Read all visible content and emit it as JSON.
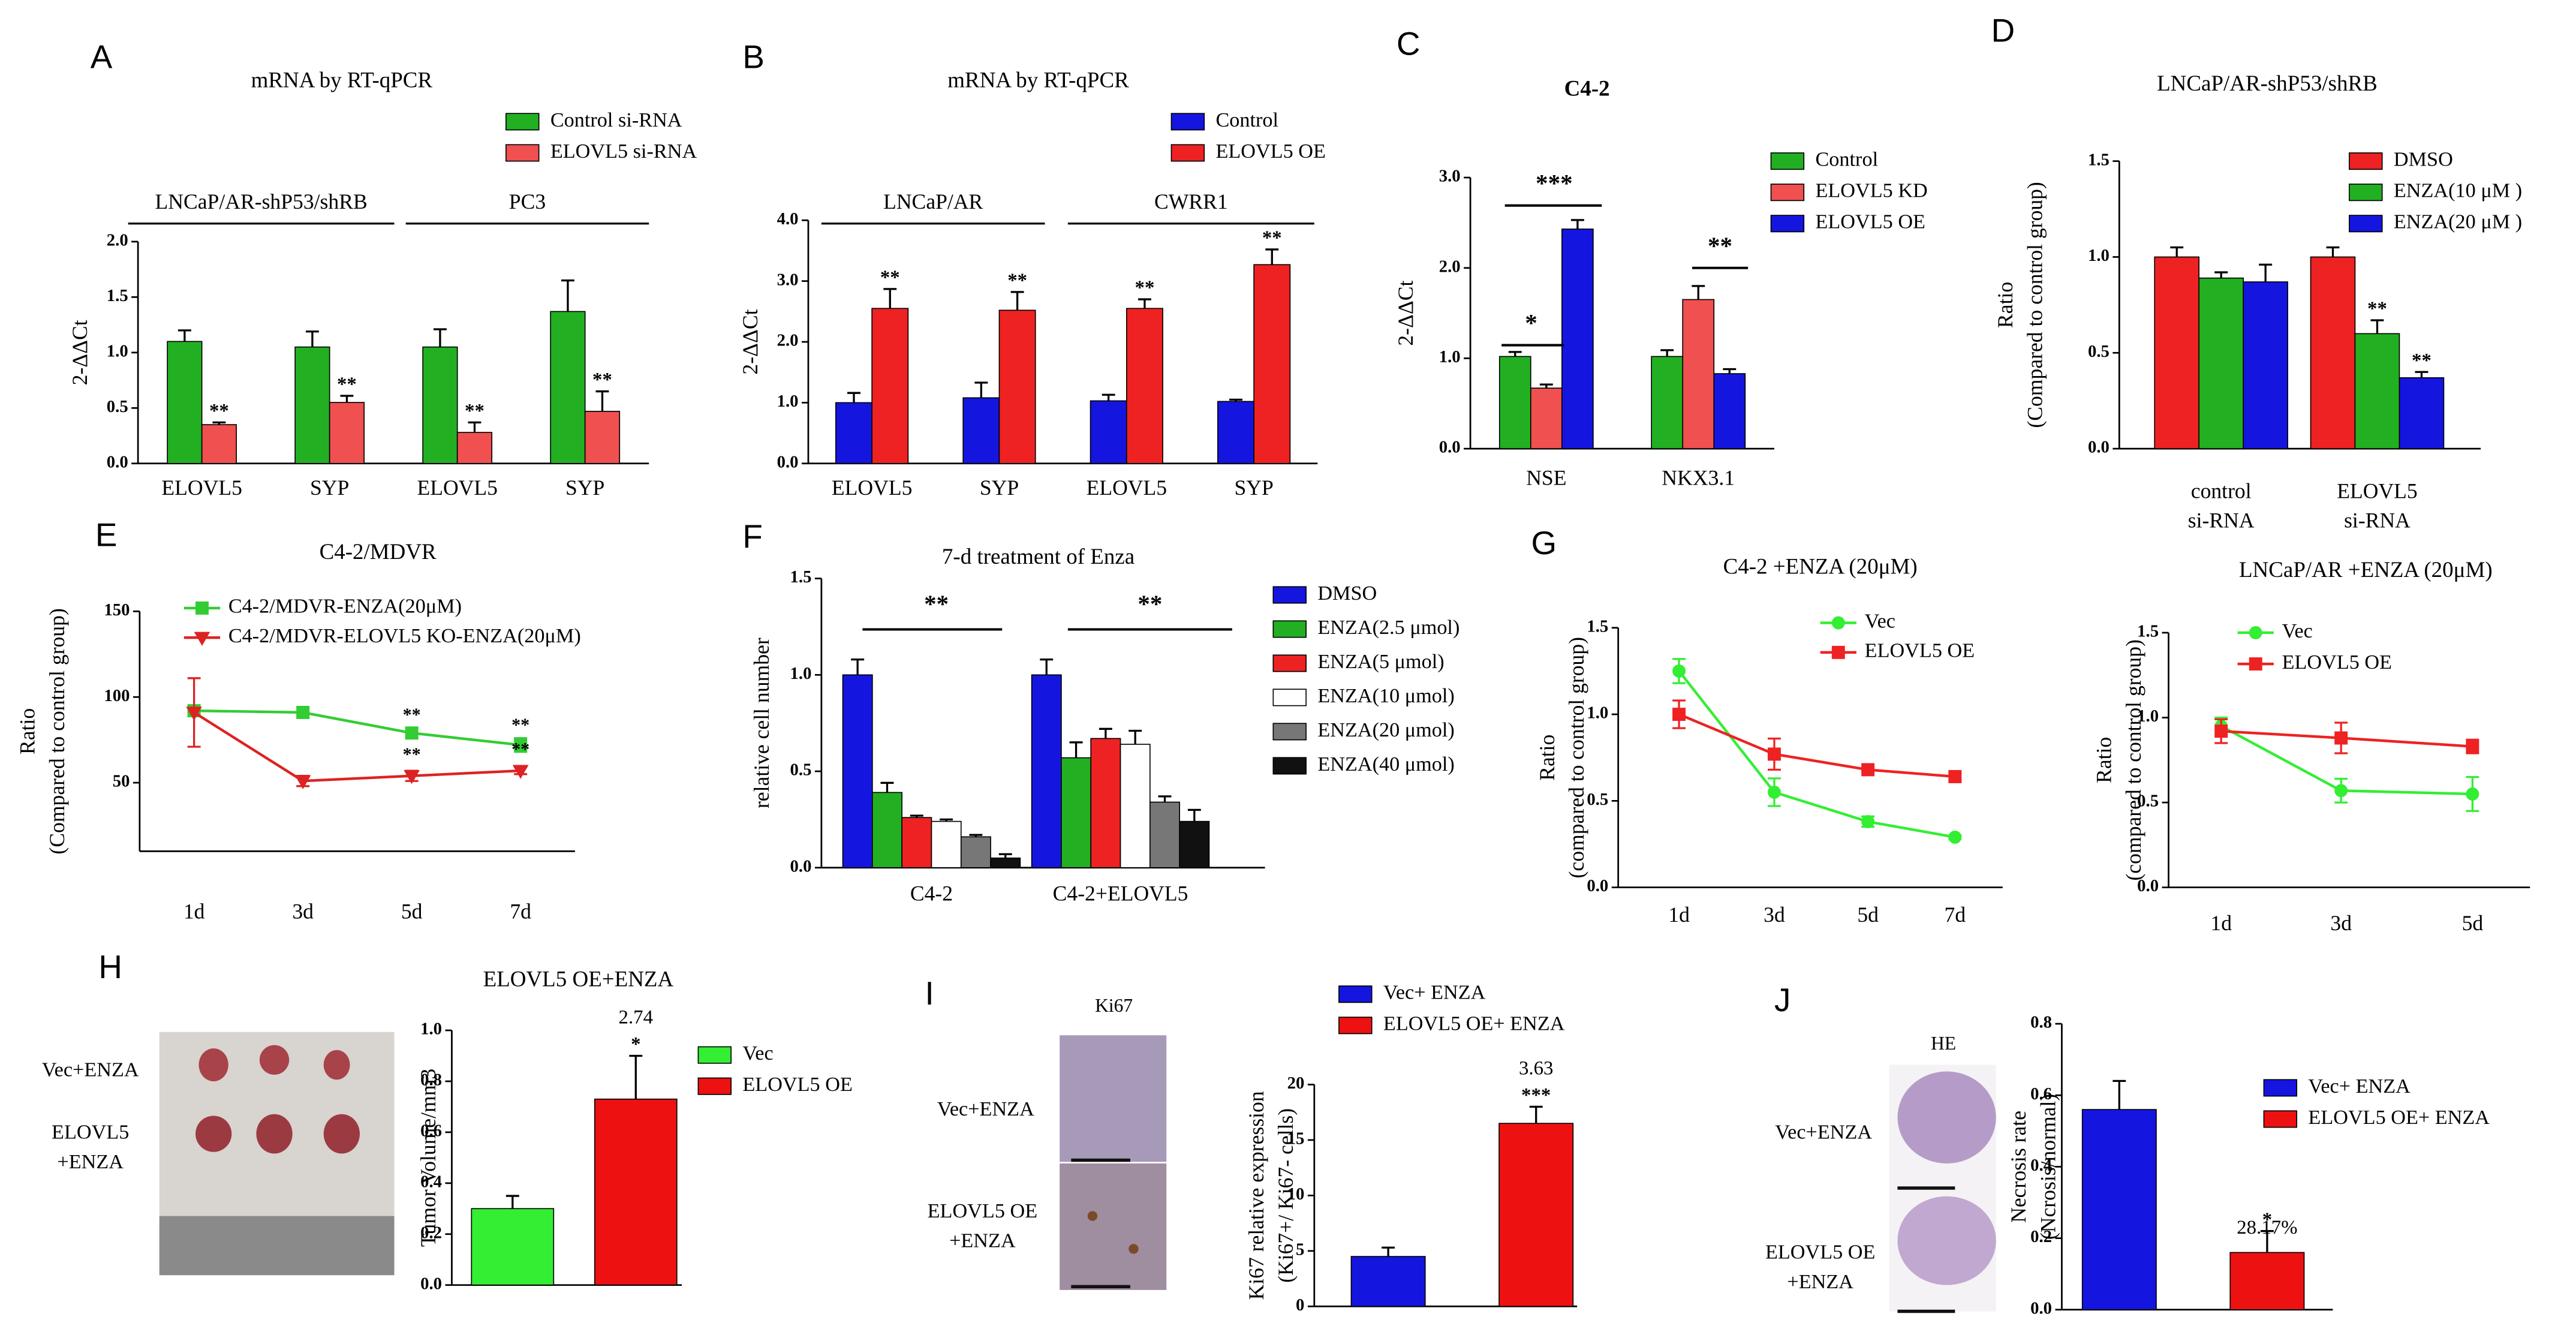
{
  "chart_data": [
    {
      "panel": "A",
      "type": "bar",
      "title": "mRNA by RT-qPCR",
      "ylabel": [
        "2-ΔΔCt"
      ],
      "groups": [
        "LNCaP/AR-shP53/shRB",
        "PC3"
      ],
      "categories": [
        [
          "ELOVL5"
        ],
        [
          "SYP"
        ],
        [
          "ELOVL5"
        ],
        [
          "SYP"
        ]
      ],
      "series": [
        {
          "name": "Control si-RNA",
          "color": "#22b022",
          "values": [
            1.1,
            1.05,
            1.05,
            1.37
          ],
          "errors": [
            0.1,
            0.14,
            0.16,
            0.28
          ]
        },
        {
          "name": "ELOVL5  si-RNA",
          "color": "#f05050",
          "values": [
            0.35,
            0.55,
            0.28,
            0.47
          ],
          "errors": [
            0.02,
            0.06,
            0.09,
            0.18
          ],
          "significance": [
            "**",
            "**",
            "**",
            "**"
          ]
        }
      ],
      "ylim": [
        0,
        2
      ],
      "yticks": [
        {
          "value": 0,
          "label": "0.0"
        },
        0.5,
        {
          "value": 1,
          "label": "1.0"
        },
        1.5,
        {
          "value": 2,
          "label": "2.0"
        }
      ]
    },
    {
      "panel": "B",
      "type": "bar",
      "title": "mRNA by RT-qPCR",
      "ylabel": [
        "2-ΔΔCt"
      ],
      "groups": [
        "LNCaP/AR",
        "CWRR1"
      ],
      "categories": [
        [
          "ELOVL5"
        ],
        [
          "SYP"
        ],
        [
          "ELOVL5"
        ],
        [
          "SYP"
        ]
      ],
      "series": [
        {
          "name": "Control",
          "color": "#1515e0",
          "values": [
            1.0,
            1.08,
            1.03,
            1.02
          ],
          "errors": [
            0.16,
            0.25,
            0.1,
            0.03
          ]
        },
        {
          "name": "ELOVL5   OE",
          "color": "#ee2222",
          "values": [
            2.55,
            2.52,
            2.55,
            3.27
          ],
          "errors": [
            0.32,
            0.3,
            0.15,
            0.25
          ],
          "significance": [
            "**",
            "**",
            "**",
            "**"
          ]
        }
      ],
      "ylim": [
        0,
        4
      ],
      "yticks": [
        {
          "value": 0,
          "label": "0.0"
        },
        {
          "value": 1,
          "label": "1.0"
        },
        {
          "value": 2,
          "label": "2.0"
        },
        {
          "value": 3,
          "label": "3.0"
        },
        {
          "value": 4,
          "label": "4.0"
        }
      ]
    },
    {
      "panel": "C",
      "type": "bar",
      "title": "C4-2",
      "ylabel": [
        "2-ΔΔCt"
      ],
      "categories": [
        [
          "NSE"
        ],
        [
          "NKX3.1"
        ]
      ],
      "series": [
        {
          "name": "Control",
          "color": "#22b022",
          "values": [
            1.02,
            1.02
          ],
          "errors": [
            0.05,
            0.07
          ]
        },
        {
          "name": "ELOVL5   KD",
          "color": "#f05050",
          "values": [
            0.67,
            1.65
          ],
          "errors": [
            0.04,
            0.15
          ]
        },
        {
          "name": "ELOVL5   OE",
          "color": "#1515e0",
          "values": [
            2.43,
            0.83
          ],
          "errors": [
            0.1,
            0.05
          ]
        }
      ],
      "annotations": [
        "*",
        "***",
        "**"
      ],
      "ylim": [
        0,
        3
      ],
      "yticks": [
        {
          "value": 0,
          "label": "0.0"
        },
        {
          "value": 1,
          "label": "1.0"
        },
        {
          "value": 2,
          "label": "2.0"
        },
        {
          "value": 3,
          "label": "3.0"
        }
      ]
    },
    {
      "panel": "D",
      "type": "bar",
      "title": "LNCaP/AR-shP53/shRB",
      "ylabel": [
        "Ratio",
        "(Compared to control group)"
      ],
      "categories": [
        [
          "control",
          "si-RNA"
        ],
        [
          "ELOVL5",
          "si-RNA"
        ]
      ],
      "series": [
        {
          "name": "DMSO",
          "color": "#ee2222",
          "values": [
            1.0,
            1.0
          ],
          "errors": [
            0.05,
            0.05
          ]
        },
        {
          "name": "ENZA(10 μM )",
          "color": "#22b022",
          "values": [
            0.89,
            0.6
          ],
          "errors": [
            0.03,
            0.07
          ],
          "significance": [
            null,
            "**"
          ]
        },
        {
          "name": "ENZA(20 μM )",
          "color": "#1515e0",
          "values": [
            0.87,
            0.37
          ],
          "errors": [
            0.09,
            0.03
          ],
          "significance": [
            null,
            "**"
          ]
        }
      ],
      "ylim": [
        0,
        1.5
      ],
      "yticks": [
        {
          "value": 0,
          "label": "0.0"
        },
        0.5,
        {
          "value": 1,
          "label": "1.0"
        },
        1.5
      ]
    },
    {
      "panel": "E",
      "type": "line",
      "title": "C4-2/MDVR",
      "ylabel": [
        "Ratio",
        "(Compared to control group)"
      ],
      "categories": [
        [
          "1d"
        ],
        [
          "3d"
        ],
        [
          "5d"
        ],
        [
          "7d"
        ]
      ],
      "series": [
        {
          "name": "C4-2/MDVR-ENZA(20μM)",
          "color": "#33cc33",
          "marker": "square",
          "values": [
            92,
            91,
            79,
            72
          ],
          "errors": [
            3,
            3,
            3,
            4
          ],
          "significance": [
            null,
            null,
            "**",
            "**"
          ]
        },
        {
          "name": "C4-2/MDVR-ELOVL5    KO-ENZA(20μM)",
          "color": "#dd2222",
          "marker": "triangle",
          "values": [
            91,
            51,
            54,
            57
          ],
          "errors": [
            20,
            3,
            3,
            2
          ],
          "significance": [
            null,
            null,
            "**",
            "**"
          ]
        }
      ],
      "ylim": [
        10,
        150
      ],
      "yticks": [
        50,
        100,
        150
      ]
    },
    {
      "panel": "F",
      "type": "bar",
      "title": "7-d treatment of Enza",
      "ylabel": [
        "relative  cell  number"
      ],
      "categories": [
        [
          "C4-2"
        ],
        [
          "C4-2+ELOVL5"
        ]
      ],
      "series": [
        {
          "name": "DMSO",
          "color": "#1515e0",
          "values": [
            1.0,
            1.0
          ],
          "errors": [
            0.08,
            0.08
          ]
        },
        {
          "name": "ENZA(2.5 μmol)",
          "color": "#22b022",
          "values": [
            0.39,
            0.57
          ],
          "errors": [
            0.05,
            0.08
          ]
        },
        {
          "name": "ENZA(5 μmol)",
          "color": "#ee2222",
          "values": [
            0.26,
            0.67
          ],
          "errors": [
            0.01,
            0.05
          ]
        },
        {
          "name": "ENZA(10 μmol)",
          "color": "#ffffff",
          "values": [
            0.24,
            0.64
          ],
          "errors": [
            0.01,
            0.07
          ]
        },
        {
          "name": "ENZA(20 μmol)",
          "color": "#777777",
          "values": [
            0.16,
            0.34
          ],
          "errors": [
            0.01,
            0.03
          ]
        },
        {
          "name": "ENZA(40 μmol)",
          "color": "#111111",
          "values": [
            0.05,
            0.24
          ],
          "errors": [
            0.02,
            0.06
          ]
        }
      ],
      "annotations": [
        "**",
        "**"
      ],
      "ylim": [
        0,
        1.5
      ],
      "yticks": [
        {
          "value": 0,
          "label": "0.0"
        },
        0.5,
        {
          "value": 1,
          "label": "1.0"
        },
        1.5
      ]
    },
    {
      "panel": "G",
      "type": "line",
      "title": "C4-2  +ENZA  (20μM)",
      "ylabel": [
        "Ratio",
        "(compared to control group)"
      ],
      "categories": [
        [
          "1d"
        ],
        [
          "3d"
        ],
        [
          "5d"
        ],
        [
          "7d"
        ]
      ],
      "series": [
        {
          "name": "Vec",
          "color": "#33ee33",
          "marker": "circle",
          "values": [
            1.25,
            0.55,
            0.38,
            0.29
          ],
          "errors": [
            0.07,
            0.08,
            0.03,
            0.01
          ]
        },
        {
          "name": "ELOVL5  OE",
          "color": "#ee2222",
          "marker": "square",
          "values": [
            1.0,
            0.77,
            0.68,
            0.64
          ],
          "errors": [
            0.08,
            0.09,
            0.01,
            0.02
          ]
        }
      ],
      "ylim": [
        0,
        1.5
      ],
      "yticks": [
        {
          "value": 0,
          "label": "0.0"
        },
        0.5,
        {
          "value": 1,
          "label": "1.0"
        },
        1.5
      ]
    },
    {
      "type": "line",
      "title": "LNCaP/AR +ENZA (20μM)",
      "ylabel": [
        "Ratio",
        "(compared to control group)"
      ],
      "categories": [
        [
          "1d"
        ],
        [
          "3d"
        ],
        [
          "5d"
        ]
      ],
      "series": [
        {
          "name": "Vec",
          "color": "#33ee33",
          "marker": "circle",
          "values": [
            0.95,
            0.57,
            0.55
          ],
          "errors": [
            0.05,
            0.07,
            0.1
          ]
        },
        {
          "name": "ELOVL5  OE",
          "color": "#ee2222",
          "marker": "square",
          "values": [
            0.92,
            0.88,
            0.83
          ],
          "errors": [
            0.07,
            0.09,
            0.04
          ]
        }
      ],
      "ylim": [
        0,
        1.5
      ],
      "yticks": [
        {
          "value": 0,
          "label": "0.0"
        },
        0.5,
        {
          "value": 1,
          "label": "1.0"
        },
        1.5
      ]
    },
    {
      "panel": "H",
      "type": "bar",
      "title": "ELOVL5    OE+ENZA",
      "ylabel": [
        "Tumor Volume/mm3"
      ],
      "image_labels": [
        [
          "Vec+ENZA"
        ],
        [
          "ELOVL5",
          "+ENZA"
        ]
      ],
      "series": [
        {
          "name": "Vec",
          "color": "#33ee33",
          "values": [
            0.3
          ],
          "errors": [
            0.05
          ]
        },
        {
          "name": "ELOVL5   OE",
          "color": "#ee1111",
          "values": [
            0.73
          ],
          "errors": [
            0.17
          ],
          "significance": [
            "*"
          ]
        }
      ],
      "annotations": [
        "2.74"
      ],
      "ylim": [
        0,
        1
      ],
      "yticks": [
        {
          "value": 0,
          "label": "0.0"
        },
        0.2,
        0.4,
        0.6,
        0.8,
        {
          "value": 1,
          "label": "1.0"
        }
      ]
    },
    {
      "panel": "I",
      "type": "bar",
      "image_title": "Ki67",
      "ylabel": [
        "Ki67 relative expression",
        "(Ki67+/ Ki67- cells)"
      ],
      "image_labels": [
        [
          "Vec+ENZA"
        ],
        [
          "ELOVL5 OE",
          "+ENZA"
        ]
      ],
      "series": [
        {
          "name": "Vec+ ENZA",
          "color": "#1515e0",
          "values": [
            4.5
          ],
          "errors": [
            0.8
          ]
        },
        {
          "name": "ELOVL5 OE+ ENZA",
          "color": "#ee1111",
          "values": [
            16.5
          ],
          "errors": [
            1.5
          ],
          "significance": [
            "***"
          ]
        }
      ],
      "annotations": [
        "3.63"
      ],
      "ylim": [
        0,
        20
      ],
      "yticks": [
        0,
        5,
        10,
        15,
        20
      ]
    },
    {
      "panel": "J",
      "type": "bar",
      "image_title": "HE",
      "ylabel": [
        "Necrosis rate",
        "(Ncrosis/normal)"
      ],
      "image_labels": [
        [
          "Vec+ENZA"
        ],
        [
          "ELOVL5 OE",
          "+ENZA"
        ]
      ],
      "series": [
        {
          "name": "Vec+ ENZA",
          "color": "#1515e0",
          "values": [
            0.56
          ],
          "errors": [
            0.08
          ]
        },
        {
          "name": "ELOVL5 OE+ ENZA",
          "color": "#ee1111",
          "values": [
            0.16
          ],
          "errors": [
            0.06
          ],
          "significance": [
            "*"
          ]
        }
      ],
      "annotations": [
        "28.17%"
      ],
      "ylim": [
        0,
        0.8
      ],
      "yticks": [
        {
          "value": 0,
          "label": "0.0"
        },
        0.2,
        0.4,
        0.6,
        0.8
      ]
    }
  ]
}
